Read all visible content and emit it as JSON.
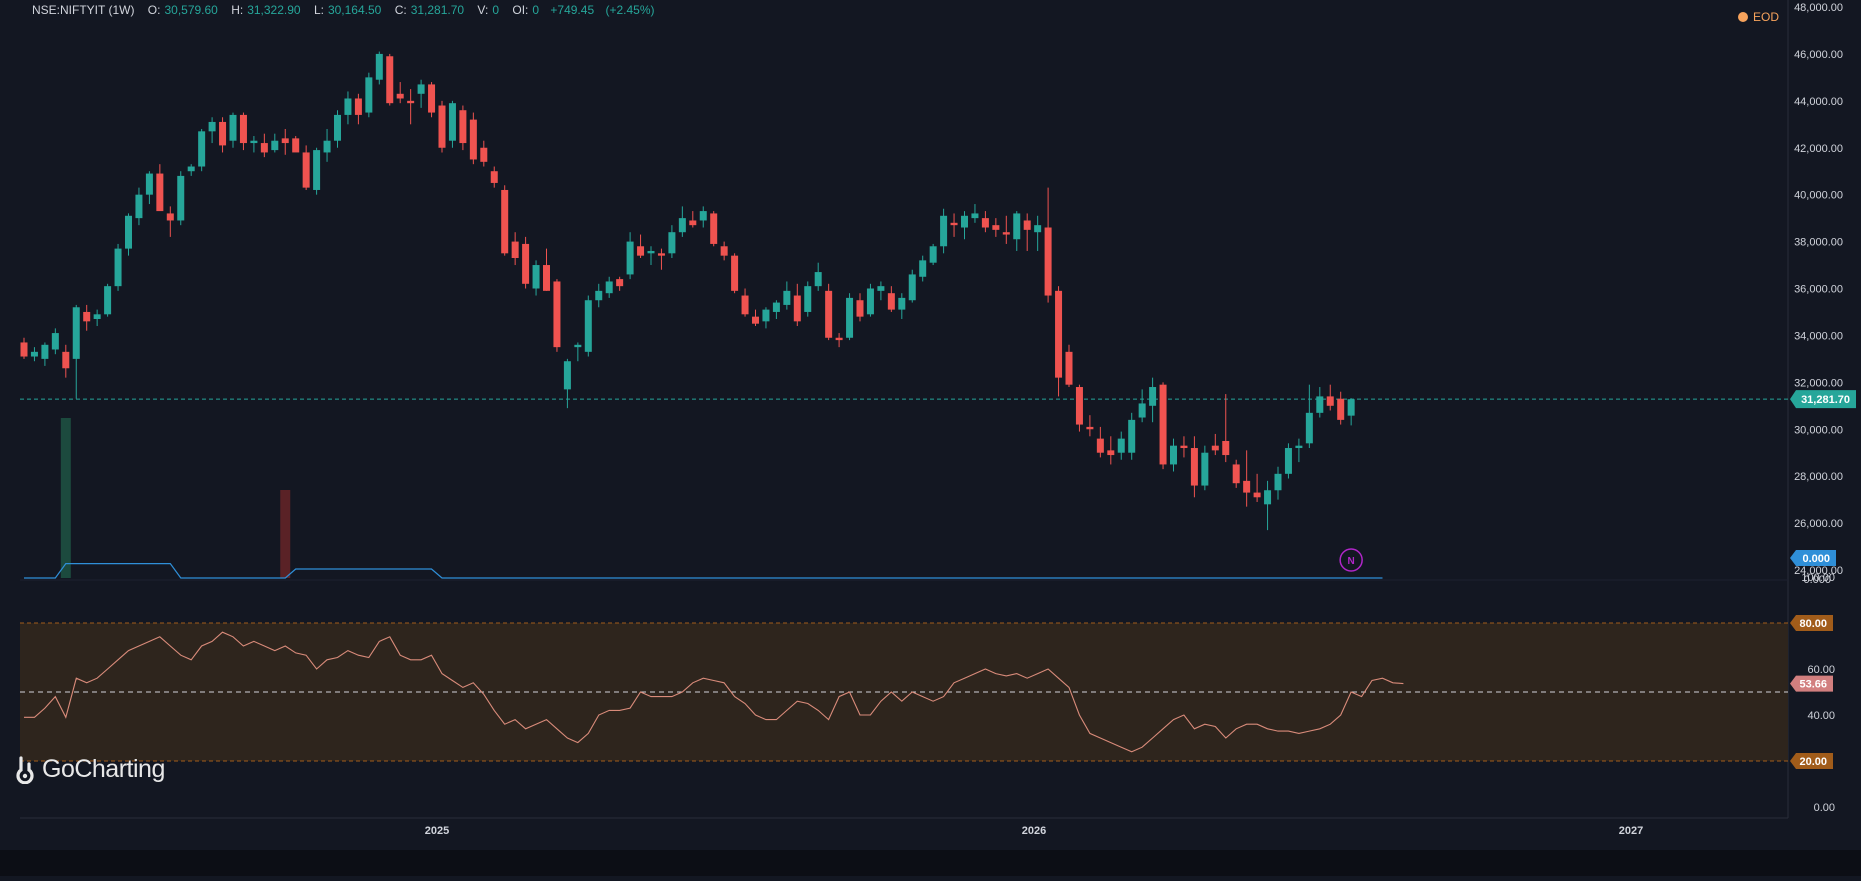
{
  "header": {
    "symbol": "NSE:NIFTYIT (1W)",
    "open_label": "O:",
    "open": "30,579.60",
    "high_label": "H:",
    "high": "31,322.90",
    "low_label": "L:",
    "low": "30,164.50",
    "close_label": "C:",
    "close": "31,281.70",
    "volume_label": "V:",
    "volume": "0",
    "oi_label": "OI:",
    "oi": "0",
    "change": "+749.45",
    "change_pct": "(+2.45%)"
  },
  "eod_label": "EOD",
  "logo_text": "GoCharting",
  "marker_letter": "N",
  "colors": {
    "up": "#26a69a",
    "down": "#ef5350",
    "bg": "#131722",
    "axis_text": "#d1d4dc",
    "price_tag": "#26a69a",
    "indicator_line": "#2f8fd8",
    "rsi_line": "#d98b7a",
    "rsi_band": "#2e251d",
    "rsi_tag_80": "#a15c1a",
    "rsi_tag_val": "#d27f7f",
    "marker": "#b026c9"
  },
  "chart_data": [
    {
      "type": "candlestick",
      "title": "NSE:NIFTYIT (1W)",
      "y_ticks": [
        "48,000.00",
        "46,000.00",
        "44,000.00",
        "42,000.00",
        "40,000.00",
        "38,000.00",
        "36,000.00",
        "34,000.00",
        "32,000.00",
        "30,000.00",
        "28,000.00",
        "26,000.00",
        "24,000.00"
      ],
      "ylim": [
        24000,
        48000
      ],
      "x_ticks": [
        "2025",
        "2026",
        "2027"
      ],
      "last_price": 31281.7,
      "last_price_label": "31,281.70",
      "candles": [
        {
          "o": 33700,
          "h": 33900,
          "l": 33000,
          "c": 33100
        },
        {
          "o": 33100,
          "h": 33500,
          "l": 32900,
          "c": 33300
        },
        {
          "o": 33000,
          "h": 33700,
          "l": 32700,
          "c": 33600
        },
        {
          "o": 33400,
          "h": 34300,
          "l": 33200,
          "c": 34100
        },
        {
          "o": 33300,
          "h": 33600,
          "l": 32200,
          "c": 32600
        },
        {
          "o": 33000,
          "h": 35300,
          "l": 31300,
          "c": 35200
        },
        {
          "o": 35000,
          "h": 35300,
          "l": 34200,
          "c": 34600
        },
        {
          "o": 34700,
          "h": 35100,
          "l": 34400,
          "c": 34900
        },
        {
          "o": 34900,
          "h": 36200,
          "l": 34800,
          "c": 36100
        },
        {
          "o": 36100,
          "h": 37900,
          "l": 35900,
          "c": 37700
        },
        {
          "o": 37700,
          "h": 39200,
          "l": 37400,
          "c": 39100
        },
        {
          "o": 39000,
          "h": 40300,
          "l": 38700,
          "c": 40000
        },
        {
          "o": 40000,
          "h": 41000,
          "l": 39600,
          "c": 40900
        },
        {
          "o": 40900,
          "h": 41300,
          "l": 39400,
          "c": 39300
        },
        {
          "o": 39200,
          "h": 39500,
          "l": 38200,
          "c": 38900
        },
        {
          "o": 38900,
          "h": 41000,
          "l": 38700,
          "c": 40800
        },
        {
          "o": 41000,
          "h": 41300,
          "l": 40800,
          "c": 41200
        },
        {
          "o": 41200,
          "h": 42800,
          "l": 41000,
          "c": 42700
        },
        {
          "o": 42700,
          "h": 43300,
          "l": 42200,
          "c": 43100
        },
        {
          "o": 43100,
          "h": 43300,
          "l": 41800,
          "c": 42100
        },
        {
          "o": 42300,
          "h": 43500,
          "l": 42000,
          "c": 43400
        },
        {
          "o": 43400,
          "h": 43500,
          "l": 41900,
          "c": 42200
        },
        {
          "o": 42200,
          "h": 42500,
          "l": 41800,
          "c": 42300
        },
        {
          "o": 42200,
          "h": 42600,
          "l": 41600,
          "c": 41800
        },
        {
          "o": 41900,
          "h": 42600,
          "l": 41800,
          "c": 42300
        },
        {
          "o": 42400,
          "h": 42800,
          "l": 41700,
          "c": 42200
        },
        {
          "o": 42400,
          "h": 42500,
          "l": 41900,
          "c": 41800
        },
        {
          "o": 41800,
          "h": 42100,
          "l": 40200,
          "c": 40300
        },
        {
          "o": 40200,
          "h": 42000,
          "l": 40000,
          "c": 41900
        },
        {
          "o": 41800,
          "h": 42800,
          "l": 41400,
          "c": 42300
        },
        {
          "o": 42300,
          "h": 43600,
          "l": 42000,
          "c": 43400
        },
        {
          "o": 43400,
          "h": 44400,
          "l": 43000,
          "c": 44100
        },
        {
          "o": 44100,
          "h": 44300,
          "l": 43000,
          "c": 43400
        },
        {
          "o": 43500,
          "h": 45200,
          "l": 43300,
          "c": 45000
        },
        {
          "o": 44900,
          "h": 46100,
          "l": 44700,
          "c": 46000
        },
        {
          "o": 45900,
          "h": 46000,
          "l": 43800,
          "c": 43900
        },
        {
          "o": 44300,
          "h": 44800,
          "l": 43900,
          "c": 44100
        },
        {
          "o": 44000,
          "h": 44500,
          "l": 43000,
          "c": 43900
        },
        {
          "o": 44300,
          "h": 44900,
          "l": 43700,
          "c": 44700
        },
        {
          "o": 44700,
          "h": 44800,
          "l": 43300,
          "c": 43500
        },
        {
          "o": 43800,
          "h": 44000,
          "l": 41800,
          "c": 42000
        },
        {
          "o": 42300,
          "h": 44000,
          "l": 42000,
          "c": 43900
        },
        {
          "o": 43600,
          "h": 43800,
          "l": 41900,
          "c": 42200
        },
        {
          "o": 43200,
          "h": 43500,
          "l": 41300,
          "c": 41500
        },
        {
          "o": 42000,
          "h": 42300,
          "l": 41200,
          "c": 41400
        },
        {
          "o": 41000,
          "h": 41200,
          "l": 40300,
          "c": 40500
        },
        {
          "o": 40200,
          "h": 40400,
          "l": 37400,
          "c": 37500
        },
        {
          "o": 38000,
          "h": 38400,
          "l": 37000,
          "c": 37300
        },
        {
          "o": 37900,
          "h": 38200,
          "l": 36000,
          "c": 36200
        },
        {
          "o": 36000,
          "h": 37200,
          "l": 35700,
          "c": 37000
        },
        {
          "o": 37000,
          "h": 37700,
          "l": 35900,
          "c": 35900
        },
        {
          "o": 36300,
          "h": 36400,
          "l": 33300,
          "c": 33500
        },
        {
          "o": 31700,
          "h": 33000,
          "l": 30900,
          "c": 32900
        },
        {
          "o": 33500,
          "h": 33700,
          "l": 32900,
          "c": 33600
        },
        {
          "o": 33300,
          "h": 35700,
          "l": 33100,
          "c": 35500
        },
        {
          "o": 35500,
          "h": 36200,
          "l": 35200,
          "c": 35900
        },
        {
          "o": 35800,
          "h": 36500,
          "l": 35600,
          "c": 36300
        },
        {
          "o": 36400,
          "h": 36500,
          "l": 35900,
          "c": 36100
        },
        {
          "o": 36600,
          "h": 38400,
          "l": 36400,
          "c": 38000
        },
        {
          "o": 37800,
          "h": 38300,
          "l": 37300,
          "c": 37400
        },
        {
          "o": 37500,
          "h": 37800,
          "l": 37000,
          "c": 37600
        },
        {
          "o": 37500,
          "h": 37700,
          "l": 36800,
          "c": 37400
        },
        {
          "o": 37500,
          "h": 38700,
          "l": 37300,
          "c": 38400
        },
        {
          "o": 38400,
          "h": 39500,
          "l": 38200,
          "c": 39000
        },
        {
          "o": 38900,
          "h": 39300,
          "l": 38600,
          "c": 38700
        },
        {
          "o": 38900,
          "h": 39500,
          "l": 38600,
          "c": 39300
        },
        {
          "o": 39200,
          "h": 39300,
          "l": 37800,
          "c": 37900
        },
        {
          "o": 37800,
          "h": 38000,
          "l": 37200,
          "c": 37400
        },
        {
          "o": 37400,
          "h": 37500,
          "l": 35800,
          "c": 35900
        },
        {
          "o": 35700,
          "h": 36000,
          "l": 34800,
          "c": 34900
        },
        {
          "o": 34800,
          "h": 35100,
          "l": 34400,
          "c": 34500
        },
        {
          "o": 34600,
          "h": 35200,
          "l": 34300,
          "c": 35100
        },
        {
          "o": 35000,
          "h": 35500,
          "l": 34700,
          "c": 35400
        },
        {
          "o": 35300,
          "h": 36300,
          "l": 35100,
          "c": 35900
        },
        {
          "o": 35700,
          "h": 36200,
          "l": 34400,
          "c": 34600
        },
        {
          "o": 35000,
          "h": 36300,
          "l": 34800,
          "c": 36100
        },
        {
          "o": 36100,
          "h": 37100,
          "l": 35900,
          "c": 36700
        },
        {
          "o": 35900,
          "h": 36200,
          "l": 33800,
          "c": 33900
        },
        {
          "o": 33900,
          "h": 34100,
          "l": 33500,
          "c": 33800
        },
        {
          "o": 33900,
          "h": 35800,
          "l": 33800,
          "c": 35600
        },
        {
          "o": 35500,
          "h": 35800,
          "l": 34600,
          "c": 34800
        },
        {
          "o": 34900,
          "h": 36200,
          "l": 34800,
          "c": 36000
        },
        {
          "o": 35900,
          "h": 36300,
          "l": 35500,
          "c": 36100
        },
        {
          "o": 35800,
          "h": 36100,
          "l": 35000,
          "c": 35100
        },
        {
          "o": 35100,
          "h": 35800,
          "l": 34700,
          "c": 35600
        },
        {
          "o": 35500,
          "h": 36800,
          "l": 35400,
          "c": 36600
        },
        {
          "o": 36500,
          "h": 37400,
          "l": 36300,
          "c": 37200
        },
        {
          "o": 37100,
          "h": 37900,
          "l": 37000,
          "c": 37800
        },
        {
          "o": 37800,
          "h": 39400,
          "l": 37500,
          "c": 39100
        },
        {
          "o": 38800,
          "h": 39200,
          "l": 38200,
          "c": 38700
        },
        {
          "o": 38600,
          "h": 39300,
          "l": 38100,
          "c": 39100
        },
        {
          "o": 39000,
          "h": 39600,
          "l": 38800,
          "c": 39200
        },
        {
          "o": 39000,
          "h": 39300,
          "l": 38400,
          "c": 38600
        },
        {
          "o": 38700,
          "h": 39000,
          "l": 38200,
          "c": 38500
        },
        {
          "o": 38400,
          "h": 39100,
          "l": 37900,
          "c": 38300
        },
        {
          "o": 38100,
          "h": 39300,
          "l": 37600,
          "c": 39200
        },
        {
          "o": 38900,
          "h": 39200,
          "l": 37600,
          "c": 38500
        },
        {
          "o": 38400,
          "h": 39100,
          "l": 37600,
          "c": 38700
        },
        {
          "o": 38600,
          "h": 40300,
          "l": 35400,
          "c": 35700
        },
        {
          "o": 35900,
          "h": 36100,
          "l": 31400,
          "c": 32200
        },
        {
          "o": 33300,
          "h": 33600,
          "l": 31800,
          "c": 31900
        },
        {
          "o": 31800,
          "h": 31900,
          "l": 29900,
          "c": 30200
        },
        {
          "o": 30100,
          "h": 30600,
          "l": 29700,
          "c": 30000
        },
        {
          "o": 29600,
          "h": 30100,
          "l": 28800,
          "c": 29000
        },
        {
          "o": 29100,
          "h": 29700,
          "l": 28500,
          "c": 28900
        },
        {
          "o": 29000,
          "h": 29900,
          "l": 28700,
          "c": 29600
        },
        {
          "o": 29000,
          "h": 30700,
          "l": 28700,
          "c": 30400
        },
        {
          "o": 30500,
          "h": 31700,
          "l": 30300,
          "c": 31100
        },
        {
          "o": 31000,
          "h": 32200,
          "l": 30300,
          "c": 31800
        },
        {
          "o": 31900,
          "h": 32000,
          "l": 28300,
          "c": 28500
        },
        {
          "o": 28500,
          "h": 29600,
          "l": 28200,
          "c": 29300
        },
        {
          "o": 29300,
          "h": 29700,
          "l": 28800,
          "c": 29200
        },
        {
          "o": 29200,
          "h": 29700,
          "l": 27100,
          "c": 27600
        },
        {
          "o": 27600,
          "h": 29300,
          "l": 27400,
          "c": 29000
        },
        {
          "o": 29300,
          "h": 29800,
          "l": 28900,
          "c": 29100
        },
        {
          "o": 29500,
          "h": 31500,
          "l": 28600,
          "c": 28900
        },
        {
          "o": 28500,
          "h": 28700,
          "l": 27500,
          "c": 27700
        },
        {
          "o": 27800,
          "h": 29100,
          "l": 26700,
          "c": 27300
        },
        {
          "o": 27300,
          "h": 28100,
          "l": 26900,
          "c": 27100
        },
        {
          "o": 26800,
          "h": 27800,
          "l": 25700,
          "c": 27400
        },
        {
          "o": 27400,
          "h": 28400,
          "l": 27000,
          "c": 28100
        },
        {
          "o": 28100,
          "h": 29400,
          "l": 27900,
          "c": 29200
        },
        {
          "o": 29200,
          "h": 29600,
          "l": 28600,
          "c": 29300
        },
        {
          "o": 29400,
          "h": 31900,
          "l": 29200,
          "c": 30700
        },
        {
          "o": 30700,
          "h": 31800,
          "l": 30500,
          "c": 31400
        },
        {
          "o": 31400,
          "h": 31900,
          "l": 30800,
          "c": 31000
        },
        {
          "o": 31300,
          "h": 31600,
          "l": 30200,
          "c": 30400
        },
        {
          "o": 30579.6,
          "h": 31322.9,
          "l": 30164.5,
          "c": 31281.7
        }
      ]
    },
    {
      "type": "line",
      "indicator_value_label": "0.000",
      "zero_label": "0.000",
      "values": [
        0,
        0,
        0,
        0,
        0.8,
        0.8,
        0.8,
        0.8,
        0.8,
        0.8,
        0.8,
        0.8,
        0.8,
        0.8,
        0.8,
        0,
        0,
        0,
        0,
        0,
        0,
        0,
        0,
        0,
        0,
        0,
        0.5,
        0.5,
        0.5,
        0.5,
        0.5,
        0.5,
        0.5,
        0.5,
        0.5,
        0.5,
        0.5,
        0.5,
        0.5,
        0.5,
        0,
        0,
        0,
        0,
        0,
        0,
        0,
        0,
        0,
        0,
        0,
        0,
        0,
        0,
        0,
        0,
        0,
        0,
        0,
        0,
        0,
        0,
        0,
        0,
        0,
        0,
        0,
        0,
        0,
        0,
        0,
        0,
        0,
        0,
        0,
        0,
        0,
        0,
        0,
        0,
        0,
        0,
        0,
        0,
        0,
        0,
        0,
        0,
        0,
        0,
        0,
        0,
        0,
        0,
        0,
        0,
        0,
        0,
        0,
        0,
        0,
        0,
        0,
        0,
        0,
        0,
        0,
        0,
        0,
        0,
        0,
        0,
        0,
        0,
        0,
        0,
        0,
        0,
        0,
        0,
        0,
        0,
        0,
        0,
        0,
        0,
        0,
        0,
        0,
        0,
        0
      ]
    },
    {
      "type": "bar",
      "bars": [
        {
          "index": 4,
          "value": 1.0,
          "color": "up"
        },
        {
          "index": 25,
          "value": 0.55,
          "color": "down"
        }
      ]
    },
    {
      "type": "line",
      "title": "RSI",
      "ylim": [
        0,
        100
      ],
      "y_ticks": [
        "100.00",
        "60.00",
        "40.00",
        "0.00"
      ],
      "upper_band": 80,
      "upper_band_label": "80.00",
      "lower_band": 20,
      "lower_band_label": "20.00",
      "mid_line": 50,
      "last_value": 53.66,
      "last_value_label": "53.66",
      "values": [
        39,
        39,
        43,
        48,
        39,
        56,
        54,
        56,
        60,
        64,
        68,
        70,
        72,
        74,
        70,
        66,
        64,
        70,
        72,
        76,
        74,
        70,
        72,
        70,
        68,
        70,
        67,
        66,
        60,
        64,
        65,
        68,
        66,
        65,
        72,
        74,
        66,
        64,
        64,
        66,
        58,
        55,
        52,
        54,
        49,
        42,
        36,
        38,
        34,
        36,
        38,
        34,
        30,
        28,
        32,
        40,
        42,
        42,
        43,
        50,
        48,
        48,
        48,
        50,
        54,
        56,
        55,
        54,
        48,
        45,
        40,
        38,
        38,
        42,
        46,
        45,
        42,
        38,
        48,
        50,
        40,
        40,
        46,
        50,
        46,
        50,
        48,
        46,
        48,
        54,
        56,
        58,
        60,
        58,
        57,
        58,
        56,
        58,
        60,
        56,
        52,
        40,
        32,
        30,
        28,
        26,
        24,
        26,
        30,
        34,
        38,
        40,
        34,
        36,
        35,
        30,
        34,
        36,
        36,
        34,
        33,
        33,
        32,
        33,
        34,
        36,
        40,
        50,
        48,
        55,
        56,
        54,
        53.66
      ]
    }
  ]
}
